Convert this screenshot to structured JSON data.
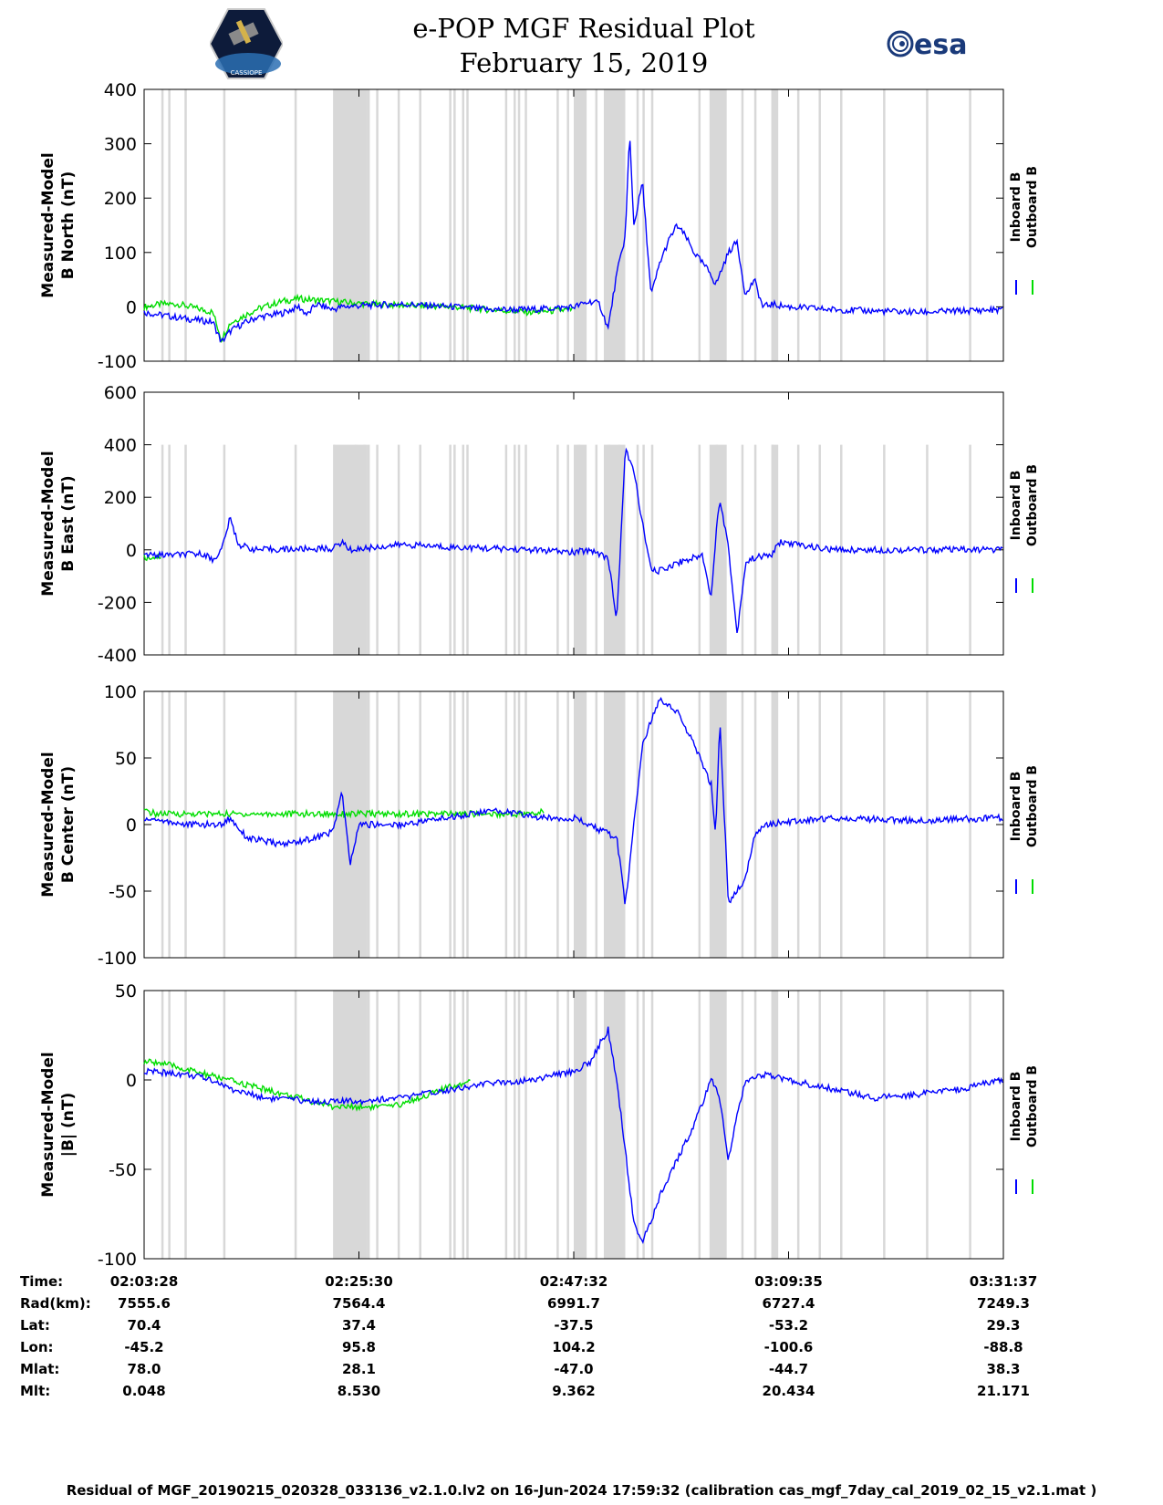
{
  "header": {
    "title_line1": "e-POP MGF Residual Plot",
    "title_line2": "February 15, 2019",
    "left_logo_text": "CASSIOPE",
    "right_logo_text": "esa"
  },
  "chart_data": [
    {
      "type": "line",
      "ylabel_line1": "Measured-Model",
      "ylabel_line2": "B North (nT)",
      "ylim": [
        -100,
        400
      ],
      "yticks": [
        -100,
        0,
        100,
        200,
        300,
        400
      ],
      "legend": [
        "Inboard B",
        "Outboard B"
      ],
      "legend_placement": "right",
      "series": [
        {
          "name": "Inboard B",
          "color": "#0000ff",
          "x": [
            0,
            2,
            4,
            8,
            9,
            10,
            11,
            13,
            16,
            18,
            19,
            20,
            21,
            22,
            23,
            26,
            30,
            36,
            40,
            45,
            50,
            52,
            53,
            54,
            55,
            56,
            56.5,
            57,
            58,
            59,
            60,
            61,
            62,
            63,
            64,
            65,
            66,
            66.5,
            67,
            68,
            69,
            70,
            71,
            72,
            73,
            75,
            80,
            90,
            100
          ],
          "y": [
            -10,
            -15,
            -20,
            -28,
            -65,
            -45,
            -35,
            -20,
            -12,
            0,
            -15,
            5,
            0,
            -5,
            0,
            3,
            5,
            0,
            -5,
            -5,
            0,
            10,
            5,
            -40,
            60,
            130,
            320,
            150,
            230,
            20,
            80,
            120,
            150,
            130,
            100,
            80,
            60,
            40,
            60,
            100,
            120,
            20,
            50,
            0,
            5,
            0,
            -5,
            -10,
            -5
          ]
        },
        {
          "name": "Outboard B",
          "color": "#00dd00",
          "x": [
            0,
            2,
            4,
            8,
            9,
            10,
            13,
            16,
            18,
            22,
            26,
            30,
            36,
            40,
            45,
            50
          ],
          "y": [
            0,
            5,
            5,
            -10,
            -60,
            -30,
            -5,
            10,
            15,
            10,
            5,
            3,
            0,
            -5,
            -10,
            -5
          ]
        }
      ]
    },
    {
      "type": "line",
      "ylabel_line1": "Measured-Model",
      "ylabel_line2": "B East (nT)",
      "ylim": [
        -400,
        600
      ],
      "yticks": [
        -400,
        -200,
        0,
        200,
        400,
        600
      ],
      "legend": [
        "Inboard B",
        "Outboard B"
      ],
      "legend_placement": "right",
      "series": [
        {
          "name": "Inboard B",
          "color": "#0000ff",
          "x": [
            0,
            3,
            7,
            8,
            9,
            10,
            11,
            13,
            22,
            23,
            24,
            30,
            36,
            45,
            50,
            52,
            54,
            55,
            56,
            57,
            58,
            59,
            60,
            62,
            63,
            64,
            65,
            66,
            66.5,
            67,
            68,
            69,
            70,
            71,
            73,
            74,
            80,
            90,
            100
          ],
          "y": [
            -20,
            -20,
            -15,
            -40,
            0,
            120,
            20,
            0,
            5,
            30,
            0,
            20,
            10,
            0,
            -10,
            0,
            -30,
            -270,
            380,
            300,
            100,
            -80,
            -80,
            -50,
            -40,
            -30,
            -20,
            -180,
            40,
            200,
            10,
            -320,
            -50,
            -30,
            -20,
            30,
            0,
            0,
            0
          ]
        },
        {
          "name": "Outboard B",
          "color": "#00dd00",
          "x": [
            0,
            2
          ],
          "y": [
            -30,
            -25
          ]
        }
      ]
    },
    {
      "type": "line",
      "ylabel_line1": "Measured-Model",
      "ylabel_line2": "B Center (nT)",
      "ylim": [
        -100,
        100
      ],
      "yticks": [
        -100,
        -50,
        0,
        50,
        100
      ],
      "legend": [
        "Inboard B",
        "Outboard B"
      ],
      "legend_placement": "right",
      "series": [
        {
          "name": "Inboard B",
          "color": "#0000ff",
          "x": [
            0,
            5,
            9,
            10,
            12,
            16,
            20,
            22,
            23,
            24,
            25,
            30,
            35,
            40,
            42,
            46,
            50,
            55,
            56,
            57,
            58,
            60,
            62,
            64,
            66,
            66.5,
            67,
            68,
            70,
            71,
            72,
            80,
            90,
            100
          ],
          "y": [
            5,
            0,
            0,
            5,
            -10,
            -15,
            -10,
            -5,
            25,
            -30,
            0,
            0,
            5,
            10,
            10,
            5,
            5,
            -10,
            -60,
            0,
            60,
            95,
            85,
            60,
            30,
            -10,
            80,
            -60,
            -40,
            -10,
            0,
            5,
            3,
            5
          ]
        },
        {
          "name": "Outboard B",
          "color": "#00dd00",
          "x": [
            0,
            1.5,
            45.5,
            46.5
          ],
          "y": [
            10,
            8,
            8,
            10
          ]
        }
      ]
    },
    {
      "type": "line",
      "ylabel_line1": "Measured-Model",
      "ylabel_line2": "|B| (nT)",
      "ylim": [
        -100,
        50
      ],
      "yticks": [
        -100,
        -50,
        0,
        50
      ],
      "legend": [
        "Inboard B",
        "Outboard B"
      ],
      "legend_placement": "right",
      "series": [
        {
          "name": "Inboard B",
          "color": "#0000ff",
          "x": [
            0,
            5,
            8,
            10,
            14,
            20,
            24,
            30,
            36,
            40,
            45,
            50,
            52,
            53,
            54,
            55,
            56,
            57,
            58,
            59,
            60,
            62,
            64,
            66,
            67,
            68,
            69,
            70,
            72,
            75,
            80,
            85,
            90,
            95,
            100
          ],
          "y": [
            5,
            3,
            0,
            -5,
            -10,
            -12,
            -12,
            -10,
            -5,
            -2,
            0,
            5,
            10,
            20,
            28,
            0,
            -40,
            -80,
            -90,
            -80,
            -65,
            -45,
            -25,
            0,
            -10,
            -45,
            -20,
            0,
            3,
            0,
            -5,
            -10,
            -8,
            -5,
            0
          ]
        },
        {
          "name": "Outboard B",
          "color": "#00dd00",
          "x": [
            0,
            1.5,
            22,
            29,
            38
          ],
          "y": [
            10,
            10,
            -15,
            -15,
            0
          ]
        }
      ]
    }
  ],
  "time_table": {
    "row_labels": [
      "Time:",
      "Rad(km):",
      "Lat:",
      "Lon:",
      "Mlat:",
      "Mlt:"
    ],
    "columns": [
      [
        "02:03:28",
        "7555.6",
        "70.4",
        "-45.2",
        "78.0",
        "0.048"
      ],
      [
        "02:25:30",
        "7564.4",
        "37.4",
        "95.8",
        "28.1",
        "8.530"
      ],
      [
        "02:47:32",
        "6991.7",
        "-37.5",
        "104.2",
        "-47.0",
        "9.362"
      ],
      [
        "03:09:35",
        "6727.4",
        "-53.2",
        "-100.6",
        "-44.7",
        "20.434"
      ],
      [
        "03:31:37",
        "7249.3",
        "29.3",
        "-88.8",
        "38.3",
        "21.171"
      ]
    ]
  },
  "footer": "Residual of MGF_20190215_020328_033136_v2.1.0.lv2 on 16-Jun-2024 17:59:32 (calibration cas_mgf_7day_cal_2019_02_15_v2.1.mat )",
  "gray_bands_pct": [
    2,
    2.8,
    4.7,
    9.2,
    17.5,
    22,
    24.5,
    25.5,
    26,
    27,
    29.5,
    32,
    35.5,
    36,
    37,
    37.5,
    42,
    43,
    43.5,
    44.3,
    48,
    49.2,
    50.5,
    52.5,
    54,
    55.2,
    57.3,
    58,
    59,
    64.5,
    66.5,
    69.5,
    71,
    73,
    76,
    78.5,
    81,
    86,
    91,
    96
  ],
  "gray_blocks_pct": [
    [
      22,
      26
    ],
    [
      50,
      51.5
    ],
    [
      53.5,
      56
    ],
    [
      65.8,
      67.8
    ],
    [
      73,
      73.8
    ]
  ]
}
